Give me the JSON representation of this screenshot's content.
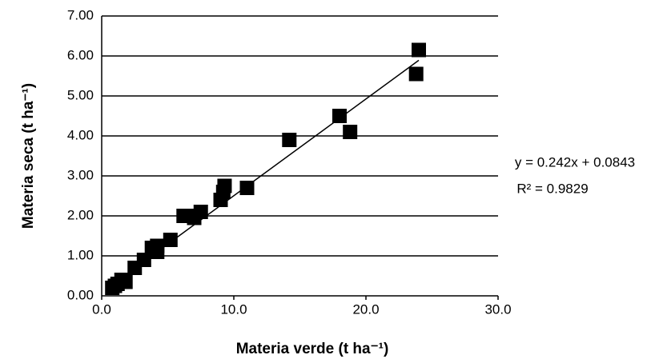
{
  "chart_data": {
    "type": "scatter",
    "xlabel": "Materia verde  (t ha⁻¹)",
    "ylabel": "Materia seca  (t ha⁻¹)",
    "x": [
      0.8,
      1.0,
      1.2,
      1.5,
      1.8,
      2.5,
      3.2,
      3.8,
      4.2,
      4.2,
      5.2,
      6.2,
      6.5,
      7.0,
      7.5,
      9.0,
      9.2,
      9.3,
      11.0,
      14.2,
      18.0,
      18.8,
      23.8,
      24.0
    ],
    "values": [
      0.2,
      0.25,
      0.3,
      0.4,
      0.35,
      0.7,
      0.9,
      1.2,
      1.25,
      1.1,
      1.4,
      2.0,
      2.0,
      1.95,
      2.1,
      2.4,
      2.6,
      2.75,
      2.7,
      3.9,
      4.5,
      4.1,
      5.55,
      6.15
    ],
    "color": "#000000",
    "xlim": [
      0,
      30
    ],
    "xticks": [
      {
        "value": 0,
        "label": "0.0"
      },
      {
        "value": 10,
        "label": "10.0"
      },
      {
        "value": 20,
        "label": "20.0"
      },
      {
        "value": 30,
        "label": "30.0"
      }
    ],
    "ylim": [
      0,
      7
    ],
    "yticks": [
      {
        "value": 0,
        "label": "0.00"
      },
      {
        "value": 1,
        "label": "1.00"
      },
      {
        "value": 2,
        "label": "2.00"
      },
      {
        "value": 3,
        "label": "3.00"
      },
      {
        "value": 4,
        "label": "4.00"
      },
      {
        "value": 5,
        "label": "5.00"
      },
      {
        "value": 6,
        "label": "6.00"
      },
      {
        "value": 7,
        "label": "7.00"
      }
    ],
    "grid": true,
    "trendline": {
      "slope": 0.242,
      "intercept": 0.0843,
      "equation": "y = 0.242x + 0.0843",
      "r2": "R² = 0.9829"
    }
  }
}
